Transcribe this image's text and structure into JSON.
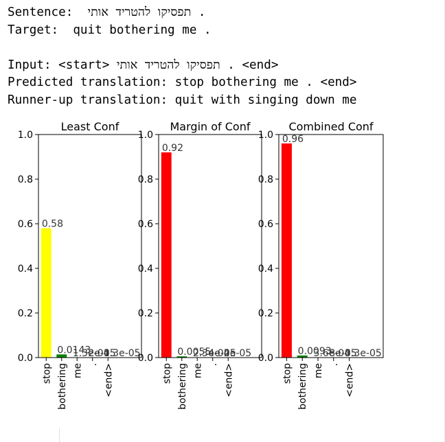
{
  "output": {
    "sentence_label": "Sentence:",
    "sentence_text": "תפסיקו להטריד אותי .",
    "target_label": "Target:",
    "target_text": "quit bothering me .",
    "input_label": "Input:",
    "input_start": "<start>",
    "input_text": "תפסיקו להטריד אותי .",
    "input_end": "<end>",
    "predicted_label": "Predicted translation:",
    "predicted_text": "stop bothering me . <end>",
    "runnerup_label": "Runner-up translation:",
    "runnerup_text": "quit with singing down me"
  },
  "chart_data": [
    {
      "type": "bar",
      "title": "Least Conf",
      "categories": [
        "stop",
        "bothering",
        "me",
        ".",
        "<end>"
      ],
      "values": [
        0.58,
        0.0143,
        0.00013,
        2e-05,
        1.3e-05
      ],
      "value_labels": [
        "0.58",
        "0.0143",
        "1.3e-04",
        "2e-05",
        "1.3e-05"
      ],
      "colors": [
        "#ffff00",
        "#008000",
        "#008000",
        "#008000",
        "#008000"
      ],
      "ylim": [
        0,
        1.0
      ],
      "yticks": [
        "0.0",
        "0.2",
        "0.4",
        "0.6",
        "0.8",
        "1.0"
      ]
    },
    {
      "type": "bar",
      "title": "Margin of Conf",
      "categories": [
        "stop",
        "bothering",
        "me",
        ".",
        "<end>"
      ],
      "values": [
        0.92,
        0.0055,
        0.00023,
        4e-05,
        2e-05
      ],
      "value_labels": [
        "0.92",
        "0.0055",
        "2.3e-04",
        "4e-05",
        "2e-05"
      ],
      "colors": [
        "#ff0000",
        "#008000",
        "#008000",
        "#008000",
        "#008000"
      ],
      "ylim": [
        0,
        1.0
      ],
      "yticks": [
        "0.0",
        "0.2",
        "0.4",
        "0.6",
        "0.8",
        "1.0"
      ]
    },
    {
      "type": "bar",
      "title": "Combined Conf",
      "categories": [
        "stop",
        "bothering",
        "me",
        ".",
        "<end>"
      ],
      "values": [
        0.96,
        0.0093,
        0.00036,
        8e-05,
        3.3e-05
      ],
      "value_labels": [
        "0.96",
        "0.0093",
        "3.6e-04",
        "8e-05",
        "3.3e-05"
      ],
      "colors": [
        "#ff0000",
        "#008000",
        "#008000",
        "#008000",
        "#008000"
      ],
      "ylim": [
        0,
        1.0
      ],
      "yticks": [
        "0.0",
        "0.2",
        "0.4",
        "0.6",
        "0.8",
        "1.0"
      ]
    }
  ]
}
